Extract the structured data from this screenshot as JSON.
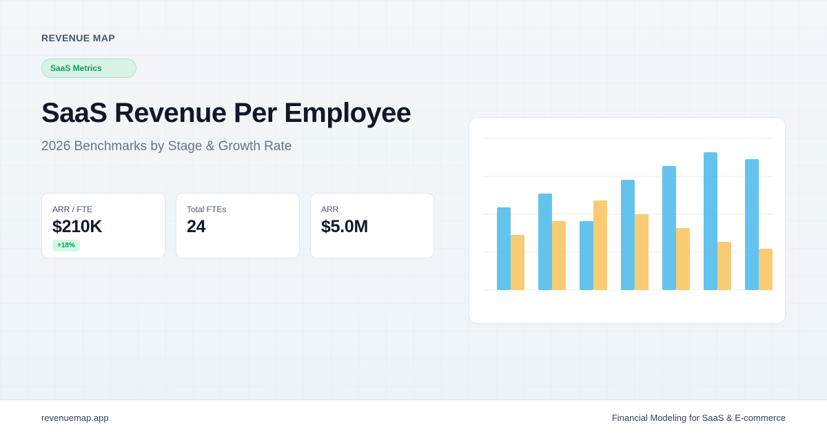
{
  "header": {
    "brand": "REVENUE MAP",
    "tag": "SaaS Metrics",
    "title": "SaaS Revenue Per Employee",
    "subtitle": "2026 Benchmarks by Stage & Growth Rate"
  },
  "metrics": [
    {
      "label": "ARR / FTE",
      "value": "$210K",
      "delta": "+18%"
    },
    {
      "label": "Total FTEs",
      "value": "24"
    },
    {
      "label": "ARR",
      "value": "$5.0M"
    }
  ],
  "footer": {
    "site": "revenuemap.app",
    "tagline": "Financial Modeling for SaaS & E-commerce"
  },
  "colors": {
    "series_a": "#5bc0eb",
    "series_b": "#f8c96e",
    "delta_bg": "#d1fae5",
    "delta_text": "#059669",
    "tag_text": "#0f9d58"
  },
  "chart_data": {
    "type": "bar",
    "categories": [
      "",
      "",
      "",
      "",
      "",
      "",
      ""
    ],
    "series": [
      {
        "values": [
          6.0,
          7.0,
          5.0,
          8.0,
          9.0,
          10.0,
          9.5
        ]
      },
      {
        "values": [
          4.0,
          5.0,
          6.5,
          5.5,
          4.5,
          3.5,
          3.0
        ]
      }
    ],
    "ylim": [
      0,
      11
    ],
    "grid": true,
    "gridlines": 5,
    "legend": "none"
  }
}
